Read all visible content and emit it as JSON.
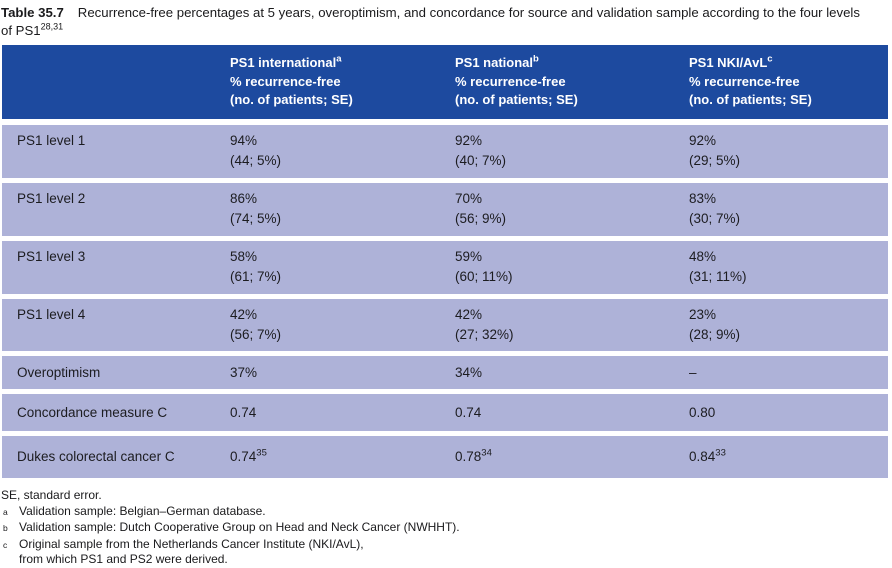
{
  "page": {
    "title_label": "Table 35.7",
    "title_text": "Recurrence-free percentages at 5 years, overoptimism, and concordance for source and validation sample according to the four levels of PS1",
    "title_sup": "28,31"
  },
  "colors": {
    "header_bg": "#1d4a9f",
    "row_bg": "#aeb2d8",
    "header_text": "#ffffff"
  },
  "table": {
    "columns": [
      {
        "name": "PS1 international",
        "sup": "a",
        "line2": "% recurrence-free",
        "line3": "(no. of patients; SE)"
      },
      {
        "name": "PS1 national",
        "sup": "b",
        "line2": "% recurrence-free",
        "line3": "(no. of patients; SE)"
      },
      {
        "name": "PS1 NKI/AvL",
        "sup": "c",
        "line2": "% recurrence-free",
        "line3": "(no. of patients; SE)"
      }
    ],
    "rows": [
      {
        "label": "PS1 level 1",
        "cells": [
          {
            "line1": "94%",
            "line2": "(44; 5%)"
          },
          {
            "line1": "92%",
            "line2": "(40; 7%)"
          },
          {
            "line1": "92%",
            "line2": "(29; 5%)"
          }
        ]
      },
      {
        "label": "PS1 level 2",
        "cells": [
          {
            "line1": "86%",
            "line2": "(74; 5%)"
          },
          {
            "line1": "70%",
            "line2": "(56; 9%)"
          },
          {
            "line1": "83%",
            "line2": "(30; 7%)"
          }
        ]
      },
      {
        "label": "PS1 level 3",
        "cells": [
          {
            "line1": "58%",
            "line2": "(61; 7%)"
          },
          {
            "line1": "59%",
            "line2": "(60; 11%)"
          },
          {
            "line1": "48%",
            "line2": "(31; 11%)"
          }
        ]
      },
      {
        "label": "PS1 level 4",
        "cells": [
          {
            "line1": "42%",
            "line2": "(56; 7%)"
          },
          {
            "line1": "42%",
            "line2": "(27; 32%)"
          },
          {
            "line1": "23%",
            "line2": "(28; 9%)"
          }
        ]
      },
      {
        "label": "Overoptimism",
        "cells": [
          {
            "line1": "37%"
          },
          {
            "line1": "34%"
          },
          {
            "line1": "–"
          }
        ]
      },
      {
        "label": "Concordance measure C",
        "cells": [
          {
            "line1": "0.74"
          },
          {
            "line1": "0.74"
          },
          {
            "line1": "0.80"
          }
        ]
      },
      {
        "label": "Dukes colorectal cancer C",
        "cells": [
          {
            "line1": "0.74",
            "sup": "35"
          },
          {
            "line1": "0.78",
            "sup": "34"
          },
          {
            "line1": "0.84",
            "sup": "33"
          }
        ]
      }
    ]
  },
  "footnotes": {
    "se": "SE, standard error.",
    "items": [
      {
        "marker": "a",
        "text": "Validation sample: Belgian–German database."
      },
      {
        "marker": "b",
        "text": "Validation sample: Dutch Cooperative Group on Head and Neck Cancer (NWHHT)."
      },
      {
        "marker": "c",
        "text": "Original sample from the Netherlands Cancer Institute (NKI/AvL),",
        "text2": "from which PS1 and PS2 were derived."
      }
    ]
  }
}
